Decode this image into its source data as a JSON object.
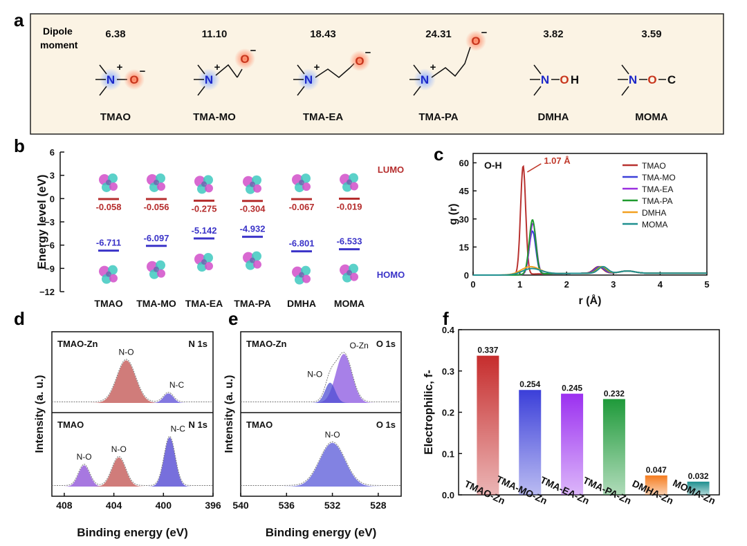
{
  "panels": {
    "a": "a",
    "b": "b",
    "c": "c",
    "d": "d",
    "e": "e",
    "f": "f"
  },
  "panel_a": {
    "dipole_label_1": "Dipole",
    "dipole_label_2": "moment",
    "molecules": [
      {
        "name": "TMAO",
        "dipole": "6.38"
      },
      {
        "name": "TMA-MO",
        "dipole": "11.10"
      },
      {
        "name": "TMA-EA",
        "dipole": "18.43"
      },
      {
        "name": "TMA-PA",
        "dipole": "24.31"
      },
      {
        "name": "DMHA",
        "dipole": "3.82"
      },
      {
        "name": "MOMA",
        "dipole": "3.59"
      }
    ],
    "atoms": {
      "N": "N",
      "O": "O",
      "H": "H",
      "C": "C",
      "plus": "+",
      "minus": "−",
      "dash": "−"
    }
  },
  "chart_data": [
    {
      "panel": "b",
      "type": "scatter",
      "title": "",
      "xlabel": "",
      "ylabel": "Energy level (eV)",
      "ylim": [
        -12,
        6
      ],
      "yticks": [
        "6",
        "3",
        "0",
        "−3",
        "−6",
        "−9",
        "−12"
      ],
      "categories": [
        "TMAO",
        "TMA-MO",
        "TMA-EA",
        "TMA-PA",
        "DMHA",
        "MOMA"
      ],
      "series": [
        {
          "name": "LUMO",
          "color": "#b52d2d",
          "values": [
            -0.058,
            -0.056,
            -0.275,
            -0.304,
            -0.067,
            -0.019
          ],
          "labels": [
            "-0.058",
            "-0.056",
            "-0.275",
            "-0.304",
            "-0.067",
            "-0.019"
          ]
        },
        {
          "name": "HOMO",
          "color": "#3a33c8",
          "values": [
            -6.711,
            -6.097,
            -5.142,
            -4.932,
            -6.801,
            -6.533
          ],
          "labels": [
            "-6.711",
            "-6.097",
            "-5.142",
            "-4.932",
            "-6.801",
            "-6.533"
          ]
        }
      ]
    },
    {
      "panel": "c",
      "type": "line",
      "title": "O-H",
      "xlabel": "r (Å)",
      "ylabel": "g (r)",
      "xlim": [
        0,
        5
      ],
      "ylim": [
        0,
        65
      ],
      "xticks": [
        "0",
        "1",
        "2",
        "3",
        "4",
        "5"
      ],
      "yticks": [
        "0",
        "15",
        "30",
        "45",
        "60"
      ],
      "annotation": {
        "text": "1.07 Å",
        "x": 1.07,
        "y": 58
      },
      "series": [
        {
          "name": "TMAO",
          "color": "#b8312f",
          "peak_r": 1.07,
          "peak_g": 58,
          "width": 0.055
        },
        {
          "name": "TMA-MO",
          "color": "#3b3fd9",
          "peak_r": 1.27,
          "peak_g": 23,
          "width": 0.07
        },
        {
          "name": "TMA-EA",
          "color": "#9a2ee0",
          "peak_r": 1.28,
          "peak_g": 27,
          "width": 0.07
        },
        {
          "name": "TMA-PA",
          "color": "#1e9a2e",
          "peak_r": 1.27,
          "peak_g": 29,
          "width": 0.07
        },
        {
          "name": "DMHA",
          "color": "#f2a020",
          "peak_r": 1.22,
          "peak_g": 4,
          "width": 0.2
        },
        {
          "name": "MOMA",
          "color": "#1e8f8f",
          "peak_r": 1.25,
          "peak_g": 3,
          "width": 0.2
        }
      ]
    },
    {
      "panel": "d",
      "type": "line",
      "xlabel": "Binding energy (eV)",
      "ylabel": "Intensity (a. u.)",
      "xlim": [
        409,
        396
      ],
      "xticks": [
        "408",
        "404",
        "400",
        "396"
      ],
      "subplots": [
        {
          "sample": "TMAO-Zn",
          "core": "N 1s",
          "peaks": [
            {
              "label": "N-O",
              "center": 403.0,
              "height": 0.8,
              "sigma": 0.75,
              "color": "#c0504d"
            },
            {
              "label": "N-C",
              "center": 399.6,
              "height": 0.18,
              "sigma": 0.4,
              "color": "#5a4bd6"
            }
          ]
        },
        {
          "sample": "TMAO",
          "core": "N 1s",
          "peaks": [
            {
              "label": "N-O",
              "center": 406.4,
              "height": 0.38,
              "sigma": 0.45,
              "color": "#8a4bd6"
            },
            {
              "label": "N-O",
              "center": 403.6,
              "height": 0.52,
              "sigma": 0.55,
              "color": "#c0504d"
            },
            {
              "label": "N-C",
              "center": 399.5,
              "height": 0.88,
              "sigma": 0.45,
              "color": "#4a3fd0"
            }
          ]
        }
      ]
    },
    {
      "panel": "e",
      "type": "line",
      "xlabel": "Binding energy (eV)",
      "ylabel": "Intensity (a. u.)",
      "xlim": [
        540,
        526
      ],
      "xticks": [
        "540",
        "536",
        "532",
        "528"
      ],
      "subplots": [
        {
          "sample": "TMAO-Zn",
          "core": "O 1s",
          "peaks": [
            {
              "label": "O-Zn",
              "center": 531.0,
              "height": 0.92,
              "sigma": 0.7,
              "color": "#8a55e0"
            },
            {
              "label": "N-O",
              "center": 532.2,
              "height": 0.38,
              "sigma": 0.45,
              "color": "#4f4fd4"
            }
          ]
        },
        {
          "sample": "TMAO",
          "core": "O 1s",
          "peaks": [
            {
              "label": "N-O",
              "center": 532.0,
              "height": 0.78,
              "sigma": 1.1,
              "color": "#5858d8"
            }
          ]
        }
      ]
    },
    {
      "panel": "f",
      "type": "bar",
      "xlabel": "",
      "ylabel": "Electrophilic, f-",
      "ylim": [
        0,
        0.4
      ],
      "yticks": [
        "0.0",
        "0.1",
        "0.2",
        "0.3",
        "0.4"
      ],
      "categories": [
        "TMAO-Zn",
        "TMA-MO-Zn",
        "TMA-EA-Zn",
        "TMA-PA-Zn",
        "DMHA-Zn",
        "MOMA-Zn"
      ],
      "values": [
        0.337,
        0.254,
        0.245,
        0.232,
        0.047,
        0.032
      ],
      "value_labels": [
        "0.337",
        "0.254",
        "0.245",
        "0.232",
        "0.047",
        "0.032"
      ],
      "colors": [
        "#c62d2d",
        "#3b3fd9",
        "#9b30f0",
        "#1f9a3a",
        "#f57c1f",
        "#1e8f8f"
      ]
    }
  ]
}
